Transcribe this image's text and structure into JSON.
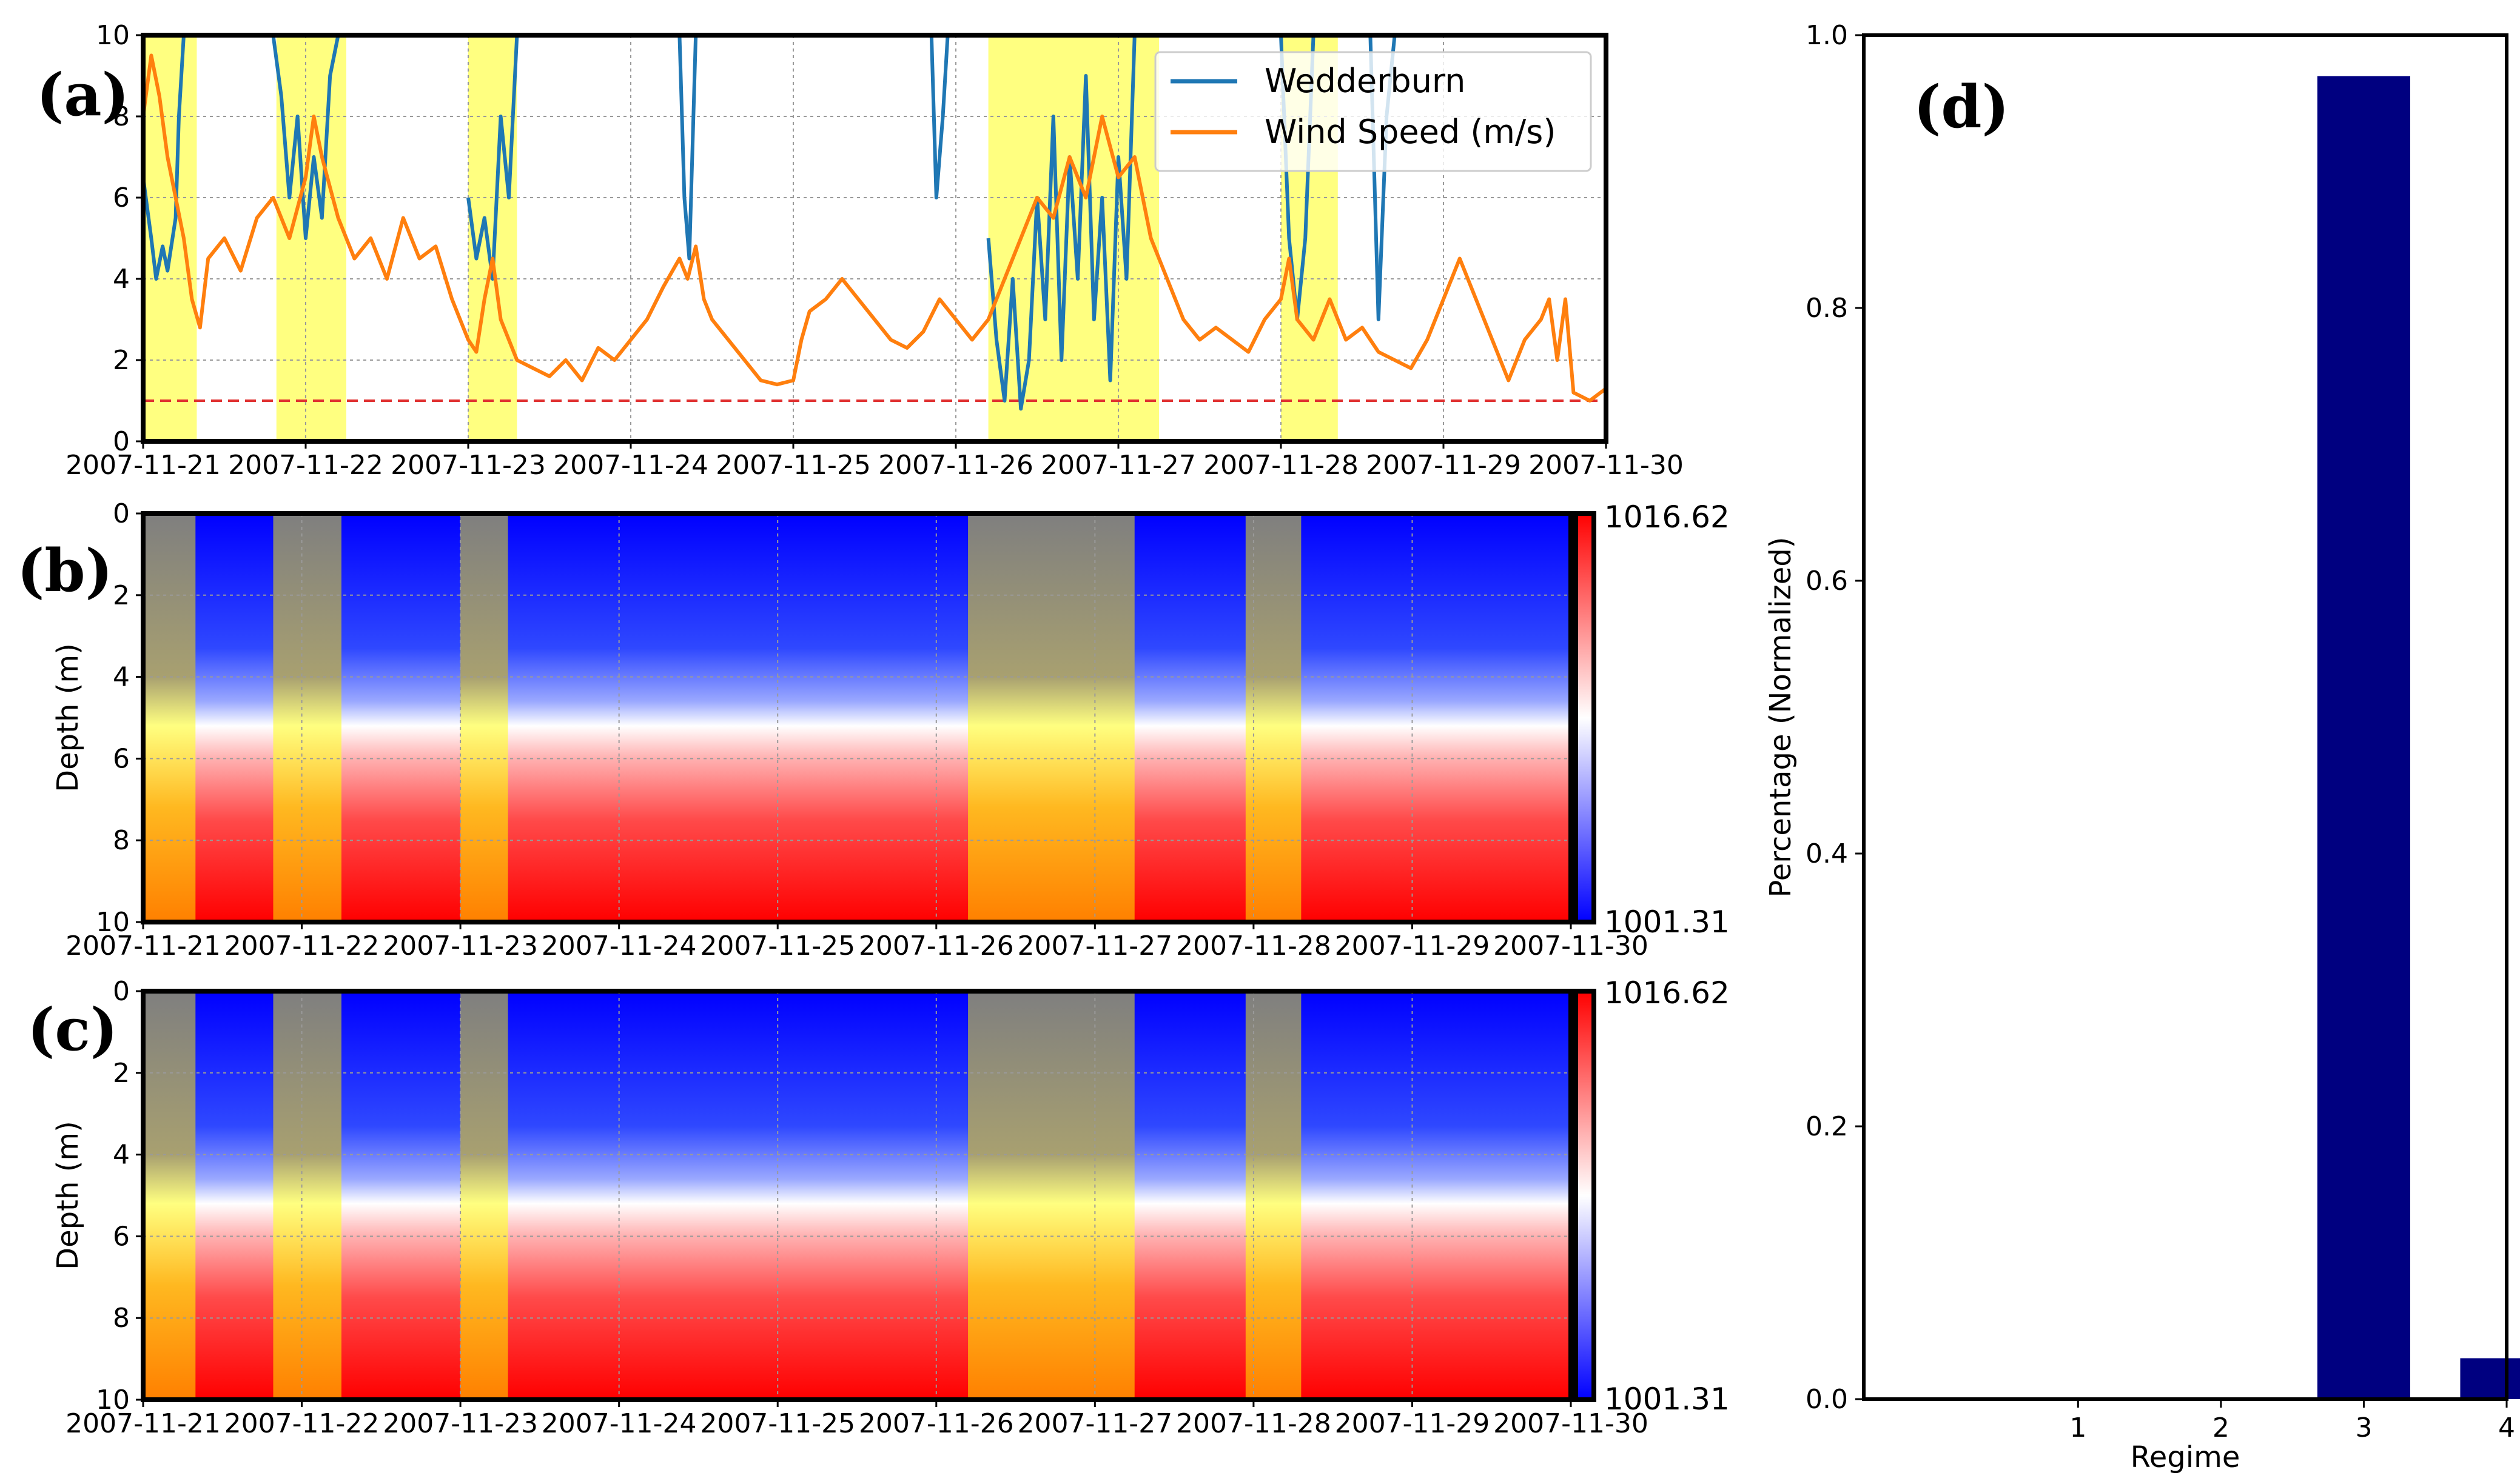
{
  "chart_data": [
    {
      "panel": "(a)",
      "type": "line",
      "x_labels": [
        "2007-11-21",
        "2007-11-22",
        "2007-11-23",
        "2007-11-24",
        "2007-11-25",
        "2007-11-26",
        "2007-11-27",
        "2007-11-28",
        "2007-11-29",
        "2007-11-30"
      ],
      "xlim": [
        0,
        9
      ],
      "ylim": [
        0,
        10
      ],
      "yticks": [
        "0",
        "2",
        "4",
        "6",
        "8",
        "10"
      ],
      "threshold": 1,
      "highlight_spans": [
        [
          0,
          0.33
        ],
        [
          0.82,
          1.25
        ],
        [
          2.0,
          2.3
        ],
        [
          5.2,
          6.25
        ],
        [
          7.0,
          7.35
        ]
      ],
      "legend": [
        "Wedderburn",
        "Wind Speed (m/s)"
      ],
      "series": [
        {
          "name": "Wedderburn",
          "color": "#1f77b4",
          "segments": [
            [
              [
                0.0,
                6.5
              ],
              [
                0.05,
                5.0
              ],
              [
                0.08,
                4.0
              ],
              [
                0.12,
                4.8
              ],
              [
                0.15,
                4.2
              ],
              [
                0.2,
                5.5
              ],
              [
                0.22,
                8.0
              ],
              [
                0.25,
                10.0
              ]
            ],
            [
              [
                0.8,
                10.0
              ],
              [
                0.85,
                8.5
              ],
              [
                0.9,
                6.0
              ],
              [
                0.95,
                8.0
              ],
              [
                1.0,
                5.0
              ],
              [
                1.05,
                7.0
              ],
              [
                1.1,
                5.5
              ],
              [
                1.15,
                9.0
              ],
              [
                1.2,
                10.0
              ]
            ],
            [
              [
                2.0,
                6.0
              ],
              [
                2.05,
                4.5
              ],
              [
                2.1,
                5.5
              ],
              [
                2.15,
                4.0
              ],
              [
                2.2,
                8.0
              ],
              [
                2.25,
                6.0
              ],
              [
                2.3,
                10.0
              ]
            ],
            [
              [
                3.3,
                10.0
              ],
              [
                3.33,
                6.0
              ],
              [
                3.36,
                4.5
              ],
              [
                3.4,
                10.0
              ]
            ],
            [
              [
                4.85,
                10.0
              ],
              [
                4.88,
                6.0
              ],
              [
                4.92,
                8.0
              ],
              [
                4.95,
                10.0
              ]
            ],
            [
              [
                5.2,
                5.0
              ],
              [
                5.25,
                2.5
              ],
              [
                5.3,
                1.0
              ],
              [
                5.35,
                4.0
              ],
              [
                5.4,
                0.8
              ],
              [
                5.45,
                2.0
              ],
              [
                5.5,
                6.0
              ],
              [
                5.55,
                3.0
              ],
              [
                5.6,
                8.0
              ],
              [
                5.65,
                2.0
              ],
              [
                5.7,
                7.0
              ],
              [
                5.75,
                4.0
              ],
              [
                5.8,
                9.0
              ],
              [
                5.85,
                3.0
              ],
              [
                5.9,
                6.0
              ],
              [
                5.95,
                1.5
              ],
              [
                6.0,
                7.0
              ],
              [
                6.05,
                4.0
              ],
              [
                6.1,
                10.0
              ]
            ],
            [
              [
                7.0,
                10.0
              ],
              [
                7.05,
                5.0
              ],
              [
                7.1,
                3.0
              ],
              [
                7.15,
                5.0
              ],
              [
                7.2,
                10.0
              ]
            ],
            [
              [
                7.55,
                10.0
              ],
              [
                7.6,
                3.0
              ],
              [
                7.65,
                8.0
              ],
              [
                7.7,
                10.0
              ]
            ]
          ]
        },
        {
          "name": "Wind Speed (m/s)",
          "color": "#ff7f0e",
          "values": [
            [
              0.0,
              8.0
            ],
            [
              0.05,
              9.5
            ],
            [
              0.1,
              8.5
            ],
            [
              0.15,
              7.0
            ],
            [
              0.2,
              6.0
            ],
            [
              0.25,
              5.0
            ],
            [
              0.3,
              3.5
            ],
            [
              0.35,
              2.8
            ],
            [
              0.4,
              4.5
            ],
            [
              0.5,
              5.0
            ],
            [
              0.6,
              4.2
            ],
            [
              0.7,
              5.5
            ],
            [
              0.8,
              6.0
            ],
            [
              0.9,
              5.0
            ],
            [
              1.0,
              6.5
            ],
            [
              1.05,
              8.0
            ],
            [
              1.1,
              7.0
            ],
            [
              1.2,
              5.5
            ],
            [
              1.3,
              4.5
            ],
            [
              1.4,
              5.0
            ],
            [
              1.5,
              4.0
            ],
            [
              1.6,
              5.5
            ],
            [
              1.7,
              4.5
            ],
            [
              1.8,
              4.8
            ],
            [
              1.9,
              3.5
            ],
            [
              2.0,
              2.5
            ],
            [
              2.05,
              2.2
            ],
            [
              2.1,
              3.5
            ],
            [
              2.15,
              4.5
            ],
            [
              2.2,
              3.0
            ],
            [
              2.3,
              2.0
            ],
            [
              2.4,
              1.8
            ],
            [
              2.5,
              1.6
            ],
            [
              2.6,
              2.0
            ],
            [
              2.7,
              1.5
            ],
            [
              2.8,
              2.3
            ],
            [
              2.9,
              2.0
            ],
            [
              3.0,
              2.5
            ],
            [
              3.1,
              3.0
            ],
            [
              3.2,
              3.8
            ],
            [
              3.3,
              4.5
            ],
            [
              3.35,
              4.0
            ],
            [
              3.4,
              4.8
            ],
            [
              3.45,
              3.5
            ],
            [
              3.5,
              3.0
            ],
            [
              3.6,
              2.5
            ],
            [
              3.7,
              2.0
            ],
            [
              3.8,
              1.5
            ],
            [
              3.9,
              1.4
            ],
            [
              4.0,
              1.5
            ],
            [
              4.05,
              2.5
            ],
            [
              4.1,
              3.2
            ],
            [
              4.2,
              3.5
            ],
            [
              4.3,
              4.0
            ],
            [
              4.4,
              3.5
            ],
            [
              4.5,
              3.0
            ],
            [
              4.6,
              2.5
            ],
            [
              4.7,
              2.3
            ],
            [
              4.8,
              2.7
            ],
            [
              4.9,
              3.5
            ],
            [
              5.0,
              3.0
            ],
            [
              5.1,
              2.5
            ],
            [
              5.2,
              3.0
            ],
            [
              5.3,
              4.0
            ],
            [
              5.4,
              5.0
            ],
            [
              5.5,
              6.0
            ],
            [
              5.6,
              5.5
            ],
            [
              5.7,
              7.0
            ],
            [
              5.8,
              6.0
            ],
            [
              5.9,
              8.0
            ],
            [
              6.0,
              6.5
            ],
            [
              6.1,
              7.0
            ],
            [
              6.2,
              5.0
            ],
            [
              6.3,
              4.0
            ],
            [
              6.4,
              3.0
            ],
            [
              6.5,
              2.5
            ],
            [
              6.6,
              2.8
            ],
            [
              6.7,
              2.5
            ],
            [
              6.8,
              2.2
            ],
            [
              6.9,
              3.0
            ],
            [
              7.0,
              3.5
            ],
            [
              7.05,
              4.5
            ],
            [
              7.1,
              3.0
            ],
            [
              7.2,
              2.5
            ],
            [
              7.3,
              3.5
            ],
            [
              7.4,
              2.5
            ],
            [
              7.5,
              2.8
            ],
            [
              7.6,
              2.2
            ],
            [
              7.7,
              2.0
            ],
            [
              7.8,
              1.8
            ],
            [
              7.9,
              2.5
            ],
            [
              8.0,
              3.5
            ],
            [
              8.1,
              4.5
            ],
            [
              8.2,
              3.5
            ],
            [
              8.3,
              2.5
            ],
            [
              8.4,
              1.5
            ],
            [
              8.5,
              2.5
            ],
            [
              8.6,
              3.0
            ],
            [
              8.65,
              3.5
            ],
            [
              8.7,
              2.0
            ],
            [
              8.75,
              3.5
            ],
            [
              8.8,
              1.2
            ],
            [
              8.9,
              1.0
            ],
            [
              9.0,
              1.3
            ]
          ]
        }
      ]
    },
    {
      "panel": "(b)",
      "type": "heatmap",
      "x_labels": [
        "2007-11-21",
        "2007-11-22",
        "2007-11-23",
        "2007-11-24",
        "2007-11-25",
        "2007-11-26",
        "2007-11-27",
        "2007-11-28",
        "2007-11-29",
        "2007-11-30"
      ],
      "ylabel": "Depth (m)",
      "ylim": [
        0,
        10
      ],
      "yticks": [
        "0",
        "2",
        "4",
        "6",
        "8",
        "10"
      ],
      "colorbar_max": "1016.62",
      "colorbar_min": "1001.31",
      "highlight_spans": [
        [
          0,
          0.33
        ],
        [
          0.82,
          1.25
        ],
        [
          2.0,
          2.3
        ],
        [
          5.2,
          6.25
        ],
        [
          6.95,
          7.3
        ]
      ]
    },
    {
      "panel": "(c)",
      "type": "heatmap",
      "x_labels": [
        "2007-11-21",
        "2007-11-22",
        "2007-11-23",
        "2007-11-24",
        "2007-11-25",
        "2007-11-26",
        "2007-11-27",
        "2007-11-28",
        "2007-11-29",
        "2007-11-30"
      ],
      "ylabel": "Depth (m)",
      "ylim": [
        0,
        10
      ],
      "yticks": [
        "0",
        "2",
        "4",
        "6",
        "8",
        "10"
      ],
      "colorbar_max": "1016.62",
      "colorbar_min": "1001.31",
      "highlight_spans": [
        [
          0,
          0.33
        ],
        [
          0.82,
          1.25
        ],
        [
          2.0,
          2.3
        ],
        [
          5.2,
          6.25
        ],
        [
          6.95,
          7.3
        ]
      ]
    },
    {
      "panel": "(d)",
      "type": "bar",
      "categories": [
        "1",
        "2",
        "3",
        "4"
      ],
      "values": [
        0,
        0,
        0.97,
        0.03
      ],
      "xlabel": "Regime",
      "ylabel": "Percentage (Normalized)",
      "ylim": [
        0,
        1.0
      ],
      "yticks": [
        "0.0",
        "0.2",
        "0.4",
        "0.6",
        "0.8",
        "1.0"
      ],
      "color": "#000080"
    }
  ]
}
